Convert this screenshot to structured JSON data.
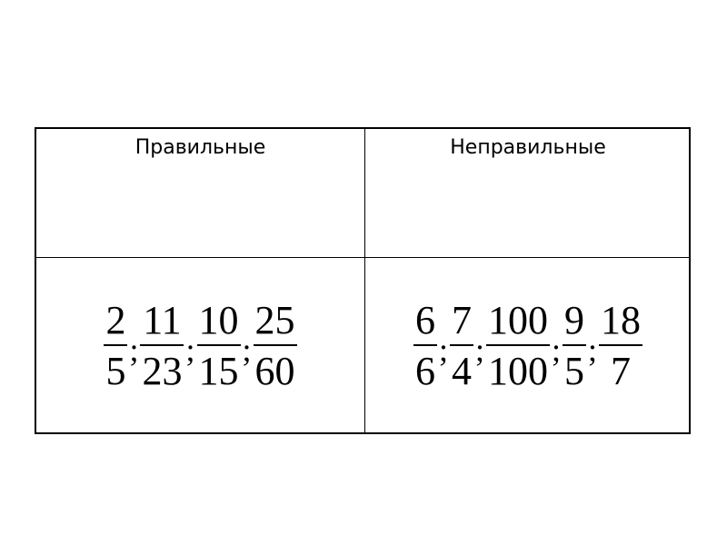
{
  "table": {
    "headers": [
      "Правильные",
      "Неправильные"
    ],
    "separator": ";",
    "proper": [
      {
        "num": "2",
        "den": "5"
      },
      {
        "num": "11",
        "den": "23"
      },
      {
        "num": "10",
        "den": "15"
      },
      {
        "num": "25",
        "den": "60"
      }
    ],
    "improper": [
      {
        "num": "6",
        "den": "6"
      },
      {
        "num": "7",
        "den": "4"
      },
      {
        "num": "100",
        "den": "100"
      },
      {
        "num": "9",
        "den": "5"
      },
      {
        "num": "18",
        "den": "7"
      }
    ]
  }
}
